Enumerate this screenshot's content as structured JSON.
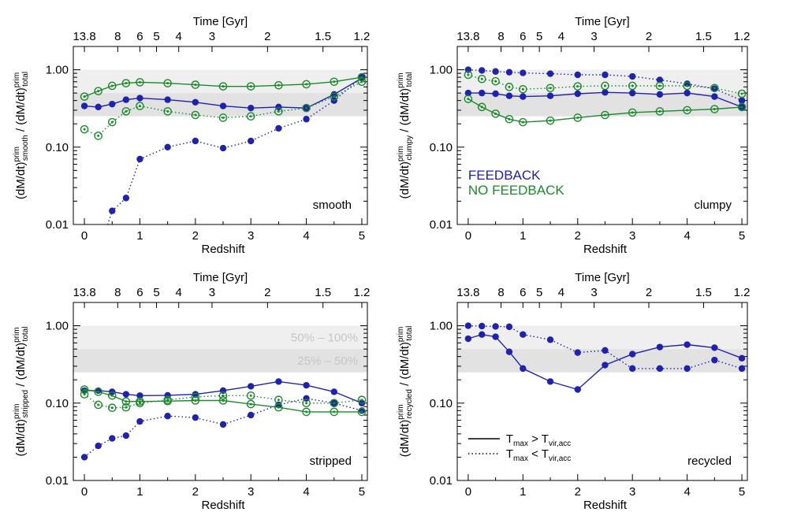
{
  "colors": {
    "feedback": "#1f22b0",
    "no_feedback": "#1b8a2b",
    "band_light": "#efefef",
    "band_dark": "#e2e2e2",
    "band_text": "#c6c6c6"
  },
  "chart_data": [
    {
      "type": "line",
      "panel_label": "smooth",
      "ylabel_main": "(dM/dt)",
      "ylabel_sup": "prim",
      "ylabel_sub": "smooth",
      "ylabel_tail": " / (dM/dt)",
      "ylabel_sup2": "prim",
      "ylabel_sub2": "total",
      "xlabel": "Redshift",
      "top_axis_label": "Time [Gyr]",
      "top_ticks": [
        "13.8",
        "8",
        "6",
        "5",
        "4",
        "3",
        "2",
        "1.5",
        "1.2"
      ],
      "top_tick_z": [
        0,
        0.6,
        1.0,
        1.3,
        1.7,
        2.3,
        3.3,
        4.3,
        5.0
      ],
      "xticks": [
        "0",
        "1",
        "2",
        "3",
        "4",
        "5"
      ],
      "yticks": [
        "0.01",
        "0.10",
        "1.00"
      ],
      "ylim": [
        0.01,
        2.0
      ],
      "xlim": [
        -0.2,
        5.1
      ],
      "yscale": "log",
      "bands": [
        [
          0.5,
          1.0
        ],
        [
          0.25,
          0.5
        ]
      ],
      "band_labels": [],
      "legend_text": [],
      "line_legend": [],
      "series": [
        {
          "group": "feedback",
          "style": "solid",
          "marker": "filled",
          "x": [
            0,
            0.25,
            0.5,
            0.75,
            1.0,
            1.5,
            2.0,
            2.5,
            3.0,
            3.5,
            4.0,
            4.5,
            5.0
          ],
          "y": [
            0.34,
            0.33,
            0.36,
            0.41,
            0.43,
            0.41,
            0.38,
            0.34,
            0.32,
            0.33,
            0.32,
            0.48,
            0.78
          ]
        },
        {
          "group": "feedback",
          "style": "dotted",
          "marker": "filled",
          "x": [
            0.4,
            0.5,
            0.75,
            1.0,
            1.5,
            2.0,
            2.5,
            3.0,
            3.5,
            4.0,
            4.5,
            5.0
          ],
          "y": [
            0.009,
            0.015,
            0.022,
            0.07,
            0.1,
            0.12,
            0.097,
            0.12,
            0.175,
            0.23,
            0.4,
            0.8
          ]
        },
        {
          "group": "no_feedback",
          "style": "solid",
          "marker": "open",
          "x": [
            0,
            0.25,
            0.5,
            0.75,
            1.0,
            1.5,
            2.0,
            2.5,
            3.0,
            3.5,
            4.0,
            4.5,
            5.0
          ],
          "y": [
            0.45,
            0.53,
            0.62,
            0.67,
            0.69,
            0.67,
            0.64,
            0.61,
            0.61,
            0.63,
            0.65,
            0.7,
            0.8
          ]
        },
        {
          "group": "no_feedback",
          "style": "dotted",
          "marker": "open",
          "x": [
            0,
            0.25,
            0.5,
            0.75,
            1.0,
            1.5,
            2.0,
            2.5,
            3.0,
            3.5,
            4.0,
            4.5,
            5.0
          ],
          "y": [
            0.17,
            0.14,
            0.21,
            0.29,
            0.34,
            0.29,
            0.26,
            0.24,
            0.25,
            0.29,
            0.32,
            0.45,
            0.7
          ]
        }
      ]
    },
    {
      "type": "line",
      "panel_label": "clumpy",
      "ylabel_main": "(dM/dt)",
      "ylabel_sup": "prim",
      "ylabel_sub": "clumpy",
      "ylabel_tail": " / (dM/dt)",
      "ylabel_sup2": "prim",
      "ylabel_sub2": "total",
      "xlabel": "Redshift",
      "top_axis_label": "Time [Gyr]",
      "top_ticks": [
        "13.8",
        "8",
        "6",
        "5",
        "4",
        "3",
        "2",
        "1.5",
        "1.2"
      ],
      "top_tick_z": [
        0,
        0.6,
        1.0,
        1.3,
        1.7,
        2.3,
        3.3,
        4.3,
        5.0
      ],
      "xticks": [
        "0",
        "1",
        "2",
        "3",
        "4",
        "5"
      ],
      "yticks": [
        "0.01",
        "0.10",
        "1.00"
      ],
      "ylim": [
        0.01,
        2.0
      ],
      "xlim": [
        -0.2,
        5.1
      ],
      "yscale": "log",
      "bands": [
        [
          0.5,
          1.0
        ],
        [
          0.25,
          0.5
        ]
      ],
      "band_labels": [],
      "legend_text": [
        {
          "text": "FEEDBACK",
          "group": "feedback"
        },
        {
          "text": "NO FEEDBACK",
          "group": "no_feedback"
        }
      ],
      "line_legend": [],
      "series": [
        {
          "group": "feedback",
          "style": "solid",
          "marker": "filled",
          "x": [
            0,
            0.25,
            0.5,
            0.75,
            1.0,
            1.5,
            2.0,
            2.5,
            3.0,
            3.5,
            4.0,
            4.5,
            5.0
          ],
          "y": [
            0.5,
            0.5,
            0.49,
            0.46,
            0.45,
            0.46,
            0.49,
            0.51,
            0.5,
            0.48,
            0.5,
            0.45,
            0.33
          ]
        },
        {
          "group": "feedback",
          "style": "dotted",
          "marker": "filled",
          "x": [
            0,
            0.25,
            0.5,
            0.75,
            1.0,
            1.5,
            2.0,
            2.5,
            3.0,
            3.5,
            4.0,
            4.5,
            5.0
          ],
          "y": [
            1.0,
            0.98,
            0.95,
            0.93,
            0.91,
            0.89,
            0.86,
            0.86,
            0.82,
            0.74,
            0.66,
            0.57,
            0.4
          ]
        },
        {
          "group": "no_feedback",
          "style": "solid",
          "marker": "open",
          "x": [
            0,
            0.25,
            0.5,
            0.75,
            1.0,
            1.5,
            2.0,
            2.5,
            3.0,
            3.5,
            4.0,
            4.5,
            5.0
          ],
          "y": [
            0.42,
            0.33,
            0.27,
            0.23,
            0.21,
            0.22,
            0.24,
            0.26,
            0.28,
            0.29,
            0.3,
            0.31,
            0.33
          ]
        },
        {
          "group": "no_feedback",
          "style": "dotted",
          "marker": "open",
          "x": [
            0,
            0.25,
            0.5,
            0.75,
            1.0,
            1.5,
            2.0,
            2.5,
            3.0,
            3.5,
            4.0,
            4.5,
            5.0
          ],
          "y": [
            0.86,
            0.76,
            0.71,
            0.6,
            0.56,
            0.58,
            0.61,
            0.62,
            0.62,
            0.62,
            0.62,
            0.58,
            0.49
          ]
        }
      ]
    },
    {
      "type": "line",
      "panel_label": "stripped",
      "ylabel_main": "(dM/dt)",
      "ylabel_sup": "prim",
      "ylabel_sub": "stripped",
      "ylabel_tail": " / (dM/dt)",
      "ylabel_sup2": "prim",
      "ylabel_sub2": "total",
      "xlabel": "Redshift",
      "top_axis_label": "Time [Gyr]",
      "top_ticks": [
        "13.8",
        "8",
        "6",
        "5",
        "4",
        "3",
        "2",
        "1.5",
        "1.2"
      ],
      "top_tick_z": [
        0,
        0.6,
        1.0,
        1.3,
        1.7,
        2.3,
        3.3,
        4.3,
        5.0
      ],
      "xticks": [
        "0",
        "1",
        "2",
        "3",
        "4",
        "5"
      ],
      "yticks": [
        "0.01",
        "0.10",
        "1.00"
      ],
      "ylim": [
        0.01,
        2.0
      ],
      "xlim": [
        -0.2,
        5.1
      ],
      "yscale": "log",
      "bands": [
        [
          0.5,
          1.0
        ],
        [
          0.25,
          0.5
        ]
      ],
      "band_labels": [
        {
          "text": "50% – 100%",
          "y": 0.72
        },
        {
          "text": "25% – 50%",
          "y": 0.36
        }
      ],
      "legend_text": [],
      "line_legend": [],
      "series": [
        {
          "group": "feedback",
          "style": "solid",
          "marker": "filled",
          "x": [
            0,
            0.25,
            0.5,
            0.75,
            1.0,
            1.5,
            2.0,
            2.5,
            3.0,
            3.5,
            4.0,
            4.5,
            5.0
          ],
          "y": [
            0.145,
            0.145,
            0.14,
            0.13,
            0.125,
            0.126,
            0.13,
            0.145,
            0.165,
            0.19,
            0.17,
            0.14,
            0.1
          ]
        },
        {
          "group": "feedback",
          "style": "dotted",
          "marker": "filled",
          "x": [
            0,
            0.25,
            0.5,
            0.75,
            1.0,
            1.5,
            2.0,
            2.5,
            3.0,
            3.5,
            4.0,
            4.5,
            5.0
          ],
          "y": [
            0.02,
            0.028,
            0.035,
            0.038,
            0.058,
            0.068,
            0.065,
            0.053,
            0.07,
            0.095,
            0.115,
            0.1,
            0.08
          ]
        },
        {
          "group": "no_feedback",
          "style": "solid",
          "marker": "open",
          "x": [
            0,
            0.25,
            0.5,
            0.75,
            1.0,
            1.5,
            2.0,
            2.5,
            3.0,
            3.5,
            4.0,
            4.5,
            5.0
          ],
          "y": [
            0.15,
            0.14,
            0.125,
            0.105,
            0.105,
            0.106,
            0.108,
            0.108,
            0.097,
            0.088,
            0.077,
            0.077,
            0.077
          ]
        },
        {
          "group": "no_feedback",
          "style": "dotted",
          "marker": "open",
          "x": [
            0,
            0.25,
            0.5,
            0.75,
            1.0,
            1.5,
            2.0,
            2.5,
            3.0,
            3.5,
            4.0,
            4.5,
            5.0
          ],
          "y": [
            0.13,
            0.095,
            0.087,
            0.088,
            0.1,
            0.11,
            0.12,
            0.125,
            0.125,
            0.11,
            0.1,
            0.1,
            0.11
          ]
        }
      ]
    },
    {
      "type": "line",
      "panel_label": "recycled",
      "ylabel_main": "(dM/dt)",
      "ylabel_sup": "prim",
      "ylabel_sub": "recycled",
      "ylabel_tail": " / (dM/dt)",
      "ylabel_sup2": "prim",
      "ylabel_sub2": "total",
      "xlabel": "Redshift",
      "top_axis_label": "Time [Gyr]",
      "top_ticks": [
        "13.8",
        "8",
        "6",
        "5",
        "4",
        "3",
        "2",
        "1.5",
        "1.2"
      ],
      "top_tick_z": [
        0,
        0.6,
        1.0,
        1.3,
        1.7,
        2.3,
        3.3,
        4.3,
        5.0
      ],
      "xticks": [
        "0",
        "1",
        "2",
        "3",
        "4",
        "5"
      ],
      "yticks": [
        "0.01",
        "0.10",
        "1.00"
      ],
      "ylim": [
        0.01,
        2.0
      ],
      "xlim": [
        -0.2,
        5.1
      ],
      "yscale": "log",
      "bands": [
        [
          0.5,
          1.0
        ],
        [
          0.25,
          0.5
        ]
      ],
      "band_labels": [],
      "legend_text": [],
      "line_legend": [
        {
          "style": "solid",
          "t": "T",
          "s1": "max",
          "op": " > T",
          "s2": "vir,acc"
        },
        {
          "style": "dotted",
          "t": "T",
          "s1": "max",
          "op": " < T",
          "s2": "vir,acc"
        }
      ],
      "series": [
        {
          "group": "feedback",
          "style": "solid",
          "marker": "filled",
          "x": [
            0,
            0.25,
            0.5,
            0.75,
            1.0,
            1.5,
            2.0,
            2.5,
            3.0,
            3.5,
            4.0,
            4.5,
            5.0
          ],
          "y": [
            0.68,
            0.77,
            0.72,
            0.46,
            0.28,
            0.19,
            0.15,
            0.31,
            0.43,
            0.53,
            0.57,
            0.52,
            0.38
          ]
        },
        {
          "group": "feedback",
          "style": "dotted",
          "marker": "filled",
          "x": [
            0,
            0.25,
            0.5,
            0.75,
            1.0,
            1.5,
            2.0,
            2.5,
            3.0,
            3.5,
            4.0,
            4.5,
            5.0
          ],
          "y": [
            1.0,
            0.99,
            0.98,
            0.97,
            0.77,
            0.66,
            0.45,
            0.48,
            0.28,
            0.28,
            0.28,
            0.36,
            0.28
          ]
        }
      ]
    }
  ]
}
